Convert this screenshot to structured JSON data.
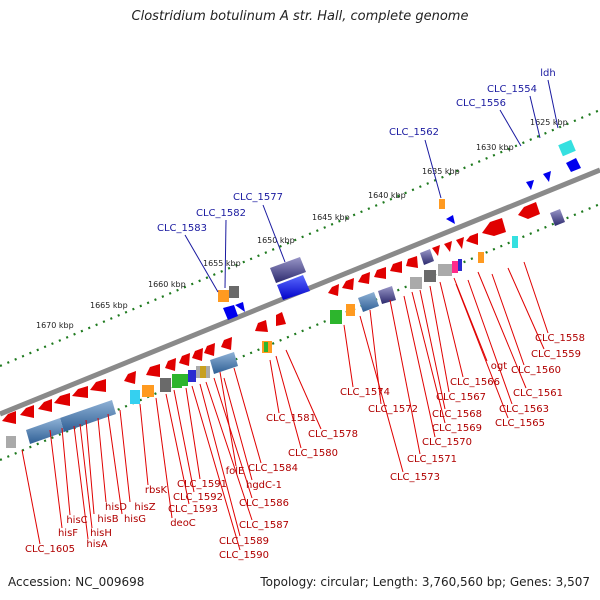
{
  "title": "Clostridium botulinum A str. Hall, complete genome",
  "footer": {
    "accession": "Accession: NC_009698",
    "summary": "Topology: circular; Length: 3,760,560 bp; Genes: 3,507"
  },
  "scale_ticks": [
    "1625 kbp",
    "1630 kbp",
    "1635 kbp",
    "1640 kbp",
    "1645 kbp",
    "1650 kbp",
    "1655 kbp",
    "1660 kbp",
    "1665 kbp",
    "1670 kbp"
  ],
  "forward_labels": [
    "ldh",
    "CLC_1554",
    "CLC_1556",
    "CLC_1562",
    "CLC_1577",
    "CLC_1582",
    "CLC_1583"
  ],
  "reverse_labels": [
    "CLC_1558",
    "CLC_1559",
    "CLC_1560",
    "CLC_1561",
    "CLC_1563",
    "CLC_1565",
    "ogt",
    "CLC_1566",
    "CLC_1567",
    "CLC_1568",
    "CLC_1569",
    "CLC_1570",
    "CLC_1571",
    "CLC_1572",
    "CLC_1573",
    "CLC_1574",
    "CLC_1578",
    "CLC_1580",
    "CLC_1581",
    "CLC_1584",
    "folE",
    "hgdC-1",
    "CLC_1586",
    "CLC_1587",
    "CLC_1589",
    "CLC_1590",
    "CLC_1591",
    "CLC_1592",
    "CLC_1593",
    "rbsK",
    "deoC",
    "hisZ",
    "hisG",
    "hisD",
    "hisB",
    "hisH",
    "hisC",
    "hisA",
    "hisF",
    "CLC_1605"
  ],
  "colors": {
    "backbone": "#8a8a8a",
    "tick": "#1f7a1f",
    "forward_label": "#1a1aa0",
    "reverse_label": "#b00000",
    "reverse_gene": "#e00000",
    "forward_gene": "#0000ee"
  }
}
